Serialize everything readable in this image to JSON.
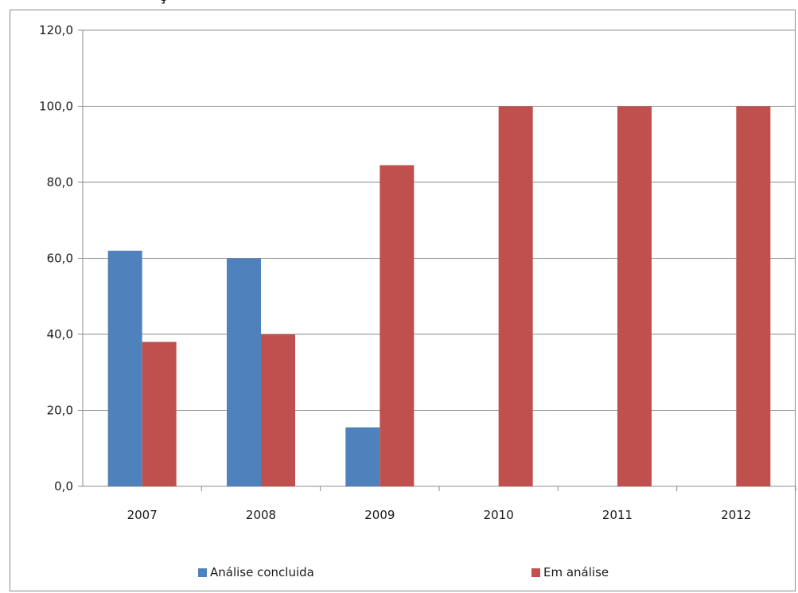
{
  "chart_data": {
    "type": "bar",
    "title": "",
    "title_fragment": "ç",
    "categories": [
      "2007",
      "2008",
      "2009",
      "2010",
      "2011",
      "2012"
    ],
    "ylim": [
      0,
      120
    ],
    "yticks": [
      0,
      20,
      40,
      60,
      80,
      100,
      120
    ],
    "ytick_labels": [
      "0,0",
      "20,0",
      "40,0",
      "60,0",
      "80,0",
      "100,0",
      "120,0"
    ],
    "grid": true,
    "legend_position": "bottom",
    "series": [
      {
        "name": "Análise concluida",
        "color": "#4f81bd",
        "values": [
          62.0,
          60.0,
          15.5,
          0,
          0,
          0
        ]
      },
      {
        "name": "Em análise",
        "color": "#c0504d",
        "values": [
          38.0,
          40.0,
          84.5,
          100.0,
          100.0,
          100.0
        ]
      }
    ]
  }
}
